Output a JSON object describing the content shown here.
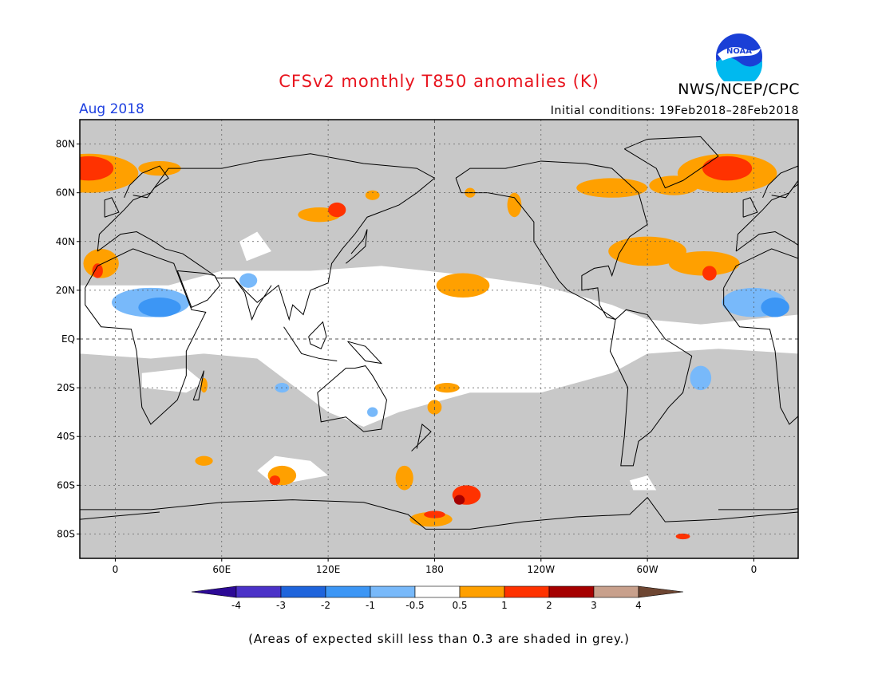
{
  "title": "CFSv2 monthly T850 anomalies (K)",
  "agency": "NWS/NCEP/CPC",
  "logo_text": "NOAA",
  "valid_period": "Aug 2018",
  "initial_conditions": "Initial conditions: 19Feb2018–28Feb2018",
  "footnote": "(Areas of expected skill less than 0.3 are shaded in grey.)",
  "map": {
    "latitude_labels": [
      "80N",
      "60N",
      "40N",
      "20N",
      "EQ",
      "20S",
      "40S",
      "60S",
      "80S"
    ],
    "latitude_values": [
      80,
      60,
      40,
      20,
      0,
      -20,
      -40,
      -60,
      -80
    ],
    "longitude_labels": [
      "0",
      "60E",
      "120E",
      "180",
      "120W",
      "60W",
      "0"
    ],
    "longitude_values": [
      0,
      60,
      120,
      180,
      240,
      300,
      360
    ],
    "lon_range": [
      -20,
      385
    ],
    "lat_range": [
      -90,
      90
    ],
    "colors": {
      "no_skill_grey": "#c8c8c8",
      "near_zero_white": "#ffffff",
      "coastline": "#000000"
    }
  },
  "legend": {
    "tick_labels": [
      "-4",
      "-3",
      "-2",
      "-1",
      "-0.5",
      "0.5",
      "1",
      "2",
      "3",
      "4"
    ],
    "bins": [
      {
        "color": "#4b32c8"
      },
      {
        "color": "#1e64dc"
      },
      {
        "color": "#3c96f5"
      },
      {
        "color": "#78b9fa"
      },
      {
        "color": "#ffffff"
      },
      {
        "color": "#ffa000"
      },
      {
        "color": "#ff3200"
      },
      {
        "color": "#a50000"
      },
      {
        "color": "#c8a08c"
      }
    ],
    "low_arrow_color": "#2d0a96",
    "high_arrow_color": "#6e4632"
  },
  "anomalies": [
    {
      "lon": -15,
      "lat": 68,
      "rx": 28,
      "ry": 8,
      "color": "#ffa000"
    },
    {
      "lon": -15,
      "lat": 70,
      "rx": 14,
      "ry": 5,
      "color": "#ff3200"
    },
    {
      "lon": 345,
      "lat": 68,
      "rx": 28,
      "ry": 8,
      "color": "#ffa000"
    },
    {
      "lon": 345,
      "lat": 70,
      "rx": 14,
      "ry": 5,
      "color": "#ff3200"
    },
    {
      "lon": 25,
      "lat": 70,
      "rx": 12,
      "ry": 3,
      "color": "#ffa000"
    },
    {
      "lon": 315,
      "lat": 63,
      "rx": 14,
      "ry": 4,
      "color": "#ffa000"
    },
    {
      "lon": 280,
      "lat": 62,
      "rx": 20,
      "ry": 4,
      "color": "#ffa000"
    },
    {
      "lon": 115,
      "lat": 51,
      "rx": 12,
      "ry": 3,
      "color": "#ffa000"
    },
    {
      "lon": 125,
      "lat": 53,
      "rx": 5,
      "ry": 3,
      "color": "#ff3200"
    },
    {
      "lon": 145,
      "lat": 59,
      "rx": 4,
      "ry": 2,
      "color": "#ffa000"
    },
    {
      "lon": 225,
      "lat": 55,
      "rx": 4,
      "ry": 5,
      "color": "#ffa000"
    },
    {
      "lon": 200,
      "lat": 60,
      "rx": 3,
      "ry": 2,
      "color": "#ffa000"
    },
    {
      "lon": 300,
      "lat": 36,
      "rx": 22,
      "ry": 6,
      "color": "#ffa000"
    },
    {
      "lon": 332,
      "lat": 31,
      "rx": 20,
      "ry": 5,
      "color": "#ffa000"
    },
    {
      "lon": 335,
      "lat": 27,
      "rx": 4,
      "ry": 3,
      "color": "#ff3200"
    },
    {
      "lon": -8,
      "lat": 31,
      "rx": 10,
      "ry": 6,
      "color": "#ffa000"
    },
    {
      "lon": -10,
      "lat": 28,
      "rx": 3,
      "ry": 3,
      "color": "#ff3200"
    },
    {
      "lon": 196,
      "lat": 22,
      "rx": 15,
      "ry": 5,
      "color": "#ffa000"
    },
    {
      "lon": 20,
      "lat": 15,
      "rx": 22,
      "ry": 6,
      "color": "#78b9fa"
    },
    {
      "lon": 25,
      "lat": 13,
      "rx": 12,
      "ry": 4,
      "color": "#3c96f5"
    },
    {
      "lon": 360,
      "lat": 15,
      "rx": 18,
      "ry": 6,
      "color": "#78b9fa"
    },
    {
      "lon": 372,
      "lat": 13,
      "rx": 8,
      "ry": 4,
      "color": "#3c96f5"
    },
    {
      "lon": 75,
      "lat": 24,
      "rx": 5,
      "ry": 3,
      "color": "#78b9fa"
    },
    {
      "lon": 330,
      "lat": -16,
      "rx": 6,
      "ry": 5,
      "color": "#78b9fa"
    },
    {
      "lon": 94,
      "lat": -20,
      "rx": 4,
      "ry": 2,
      "color": "#78b9fa"
    },
    {
      "lon": 145,
      "lat": -30,
      "rx": 3,
      "ry": 2,
      "color": "#78b9fa"
    },
    {
      "lon": 50,
      "lat": -19,
      "rx": 2,
      "ry": 3,
      "color": "#ffa000"
    },
    {
      "lon": 187,
      "lat": -20,
      "rx": 7,
      "ry": 2,
      "color": "#ffa000"
    },
    {
      "lon": 180,
      "lat": -28,
      "rx": 4,
      "ry": 3,
      "color": "#ffa000"
    },
    {
      "lon": 50,
      "lat": -50,
      "rx": 5,
      "ry": 2,
      "color": "#ffa000"
    },
    {
      "lon": 94,
      "lat": -56,
      "rx": 8,
      "ry": 4,
      "color": "#ffa000"
    },
    {
      "lon": 90,
      "lat": -58,
      "rx": 3,
      "ry": 2,
      "color": "#ff3200"
    },
    {
      "lon": 163,
      "lat": -57,
      "rx": 5,
      "ry": 5,
      "color": "#ffa000"
    },
    {
      "lon": 198,
      "lat": -64,
      "rx": 8,
      "ry": 4,
      "color": "#ff3200"
    },
    {
      "lon": 194,
      "lat": -66,
      "rx": 3,
      "ry": 2,
      "color": "#a50000"
    },
    {
      "lon": 178,
      "lat": -74,
      "rx": 12,
      "ry": 3,
      "color": "#ffa000"
    },
    {
      "lon": 180,
      "lat": -72,
      "rx": 6,
      "ry": 1.5,
      "color": "#ff3200"
    },
    {
      "lon": 320,
      "lat": -81,
      "rx": 4,
      "ry": 1.2,
      "color": "#ff3200"
    }
  ]
}
